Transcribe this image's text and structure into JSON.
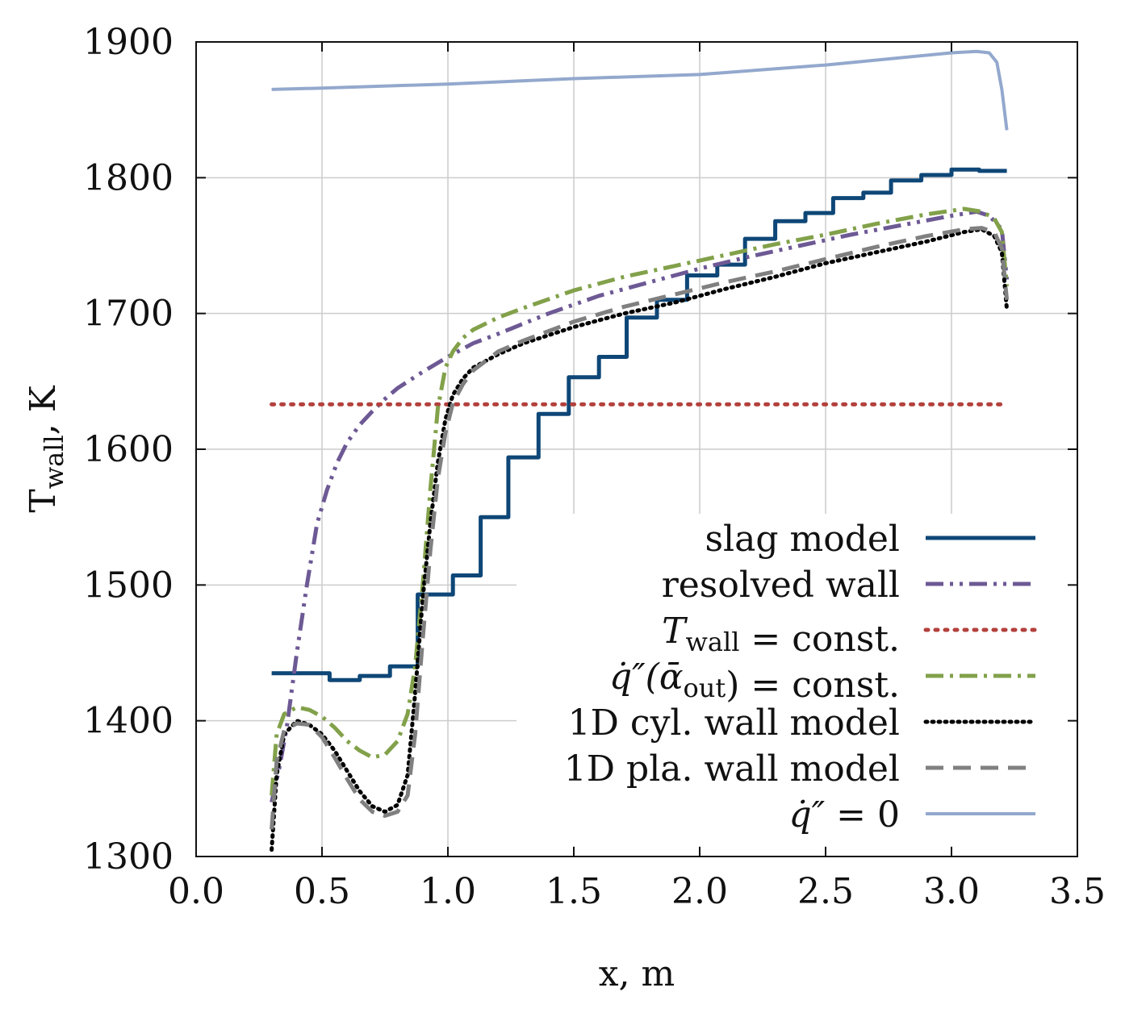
{
  "chart_data": {
    "type": "line",
    "xlabel": "x, m",
    "ylabel": "T",
    "ylabel_sub": "wall",
    "ylabel_unit": ", K",
    "xlim": [
      0.0,
      3.5
    ],
    "ylim": [
      1300,
      1900
    ],
    "xticks": [
      "0.0",
      "0.5",
      "1.0",
      "1.5",
      "2.0",
      "2.5",
      "3.0",
      "3.5"
    ],
    "yticks": [
      "1300",
      "1400",
      "1500",
      "1600",
      "1700",
      "1800",
      "1900"
    ],
    "grid": true,
    "legend_position": "bottom-right",
    "series": [
      {
        "name": "slag model",
        "legend_parts": [
          {
            "t": "slag model"
          }
        ],
        "color": "#0e4777",
        "dash": "solid",
        "width": 5,
        "step": true,
        "x": [
          0.3,
          0.53,
          0.65,
          0.77,
          0.88,
          0.93,
          1.02,
          1.13,
          1.24,
          1.36,
          1.48,
          1.6,
          1.71,
          1.83,
          1.95,
          2.07,
          2.18,
          2.3,
          2.42,
          2.53,
          2.65,
          2.76,
          2.88,
          3.0,
          3.11,
          3.22
        ],
        "y": [
          1435,
          1430,
          1433,
          1440,
          1493,
          1493,
          1507,
          1550,
          1594,
          1626,
          1653,
          1668,
          1697,
          1710,
          1728,
          1736,
          1755,
          1768,
          1774,
          1785,
          1789,
          1798,
          1802,
          1806,
          1805,
          1805
        ]
      },
      {
        "name": "resolved wall",
        "legend_parts": [
          {
            "t": "resolved wall"
          }
        ],
        "color": "#6d5994",
        "dash": "22,8,4,8,4,8",
        "width": 5,
        "x": [
          0.3,
          0.33,
          0.36,
          0.4,
          0.44,
          0.48,
          0.52,
          0.56,
          0.6,
          0.65,
          0.7,
          0.75,
          0.8,
          0.9,
          1.0,
          1.1,
          1.2,
          1.4,
          1.6,
          1.8,
          2.0,
          2.2,
          2.4,
          2.6,
          2.8,
          3.0,
          3.1,
          3.15,
          3.2,
          3.22
        ],
        "y": [
          1340,
          1365,
          1395,
          1450,
          1500,
          1545,
          1570,
          1590,
          1605,
          1618,
          1628,
          1637,
          1645,
          1657,
          1668,
          1678,
          1685,
          1700,
          1713,
          1723,
          1733,
          1742,
          1750,
          1758,
          1765,
          1772,
          1775,
          1772,
          1762,
          1725
        ]
      },
      {
        "name": "T_wall = const.",
        "legend_parts": [
          {
            "t": "T",
            "i": true
          },
          {
            "t": "wall",
            "sub": true
          },
          {
            "t": " = const."
          }
        ],
        "color": "#b3413d",
        "dash": "3,9",
        "width": 5,
        "cap": "round",
        "x": [
          0.3,
          3.22
        ],
        "y": [
          1633,
          1633
        ]
      },
      {
        "name": "q''(alpha_out) = const.",
        "legend_parts": [
          {
            "t": "q̇″(ᾱ",
            "i": true
          },
          {
            "t": "out",
            "sub": true
          },
          {
            "t": ") = const."
          }
        ],
        "color": "#82a14a",
        "dash": "22,8,4,8",
        "width": 5,
        "x": [
          0.3,
          0.32,
          0.35,
          0.4,
          0.45,
          0.5,
          0.55,
          0.6,
          0.65,
          0.7,
          0.75,
          0.8,
          0.84,
          0.87,
          0.9,
          0.93,
          0.96,
          0.99,
          1.02,
          1.06,
          1.1,
          1.2,
          1.3,
          1.5,
          1.7,
          1.9,
          2.1,
          2.3,
          2.5,
          2.7,
          2.9,
          3.05,
          3.12,
          3.17,
          3.2,
          3.22
        ],
        "y": [
          1345,
          1390,
          1405,
          1410,
          1408,
          1403,
          1395,
          1385,
          1378,
          1373,
          1375,
          1385,
          1405,
          1440,
          1500,
          1570,
          1630,
          1660,
          1672,
          1682,
          1688,
          1697,
          1704,
          1717,
          1727,
          1735,
          1743,
          1751,
          1758,
          1766,
          1773,
          1777,
          1775,
          1770,
          1760,
          1720
        ]
      },
      {
        "name": "1D cyl. wall model",
        "legend_parts": [
          {
            "t": "1D cyl. wall model"
          }
        ],
        "color": "#000000",
        "dash": "2,6",
        "width": 5,
        "cap": "round",
        "x": [
          0.3,
          0.32,
          0.35,
          0.4,
          0.45,
          0.5,
          0.55,
          0.6,
          0.65,
          0.7,
          0.75,
          0.8,
          0.84,
          0.87,
          0.9,
          0.93,
          0.96,
          0.99,
          1.02,
          1.06,
          1.1,
          1.2,
          1.3,
          1.5,
          1.7,
          1.9,
          2.1,
          2.3,
          2.5,
          2.7,
          2.9,
          3.05,
          3.12,
          3.17,
          3.2,
          3.22
        ],
        "y": [
          1305,
          1360,
          1390,
          1400,
          1397,
          1390,
          1378,
          1363,
          1348,
          1337,
          1333,
          1338,
          1360,
          1420,
          1490,
          1545,
          1590,
          1622,
          1640,
          1652,
          1660,
          1670,
          1678,
          1690,
          1700,
          1708,
          1718,
          1727,
          1737,
          1745,
          1753,
          1760,
          1762,
          1757,
          1745,
          1703
        ]
      },
      {
        "name": "1D pla. wall model",
        "legend_parts": [
          {
            "t": "1D pla. wall model"
          }
        ],
        "color": "#808080",
        "dash": "22,12",
        "width": 5,
        "x": [
          0.3,
          0.32,
          0.35,
          0.4,
          0.45,
          0.5,
          0.55,
          0.6,
          0.65,
          0.7,
          0.75,
          0.8,
          0.84,
          0.87,
          0.9,
          0.93,
          0.96,
          0.99,
          1.02,
          1.06,
          1.1,
          1.2,
          1.3,
          1.5,
          1.7,
          1.9,
          2.1,
          2.3,
          2.5,
          2.7,
          2.9,
          3.05,
          3.12,
          3.17,
          3.2,
          3.22
        ],
        "y": [
          1320,
          1370,
          1393,
          1398,
          1397,
          1388,
          1373,
          1357,
          1342,
          1333,
          1330,
          1333,
          1345,
          1390,
          1460,
          1525,
          1578,
          1612,
          1634,
          1648,
          1658,
          1672,
          1680,
          1694,
          1705,
          1714,
          1723,
          1731,
          1740,
          1749,
          1757,
          1762,
          1763,
          1760,
          1748,
          1710
        ]
      },
      {
        "name": "q'' = 0",
        "legend_parts": [
          {
            "t": "q̇″",
            "i": true
          },
          {
            "t": " = 0"
          }
        ],
        "color": "#93a8cd",
        "dash": "solid",
        "width": 4,
        "x": [
          0.3,
          0.5,
          1.0,
          1.5,
          2.0,
          2.5,
          3.0,
          3.1,
          3.15,
          3.18,
          3.2,
          3.22
        ],
        "y": [
          1865,
          1866,
          1869,
          1873,
          1876,
          1883,
          1892,
          1893,
          1892,
          1885,
          1865,
          1835
        ]
      }
    ]
  }
}
